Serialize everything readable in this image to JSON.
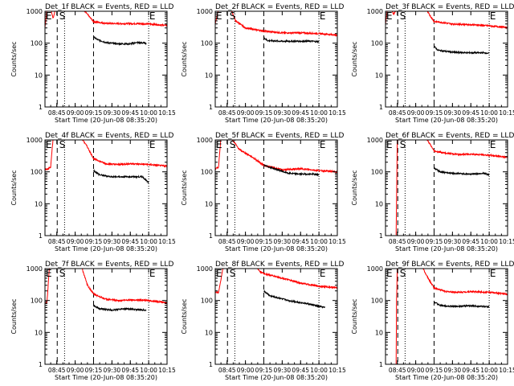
{
  "chart_data": {
    "type": "line",
    "layout": {
      "rows": 3,
      "cols": 3
    },
    "colors": {
      "events": "#000000",
      "lld": "#ff0000",
      "axes": "#000000",
      "background": "#ffffff"
    },
    "scale": {
      "y": "log"
    },
    "ylim": [
      1,
      1000
    ],
    "ytick_labels": [
      "1",
      "10",
      "100",
      "1000"
    ],
    "xlim": [
      "08:35:20",
      "10:15:00"
    ],
    "xtick_labels": [
      "08:45",
      "09:00",
      "09:15",
      "09:30",
      "09:45",
      "10:00",
      "10:15"
    ],
    "xlabel": "Start Time (20-Jun-08 08:35:20)",
    "ylabel": "Counts/sec",
    "vline_labels": {
      "E": "E",
      "S": "S"
    },
    "panels": [
      {
        "title": "Det_1f BLACK = Events, RED = LLD",
        "dashed_lines": [
          "08:45:20",
          "09:15:00"
        ],
        "dotted_lines": [
          "08:51:20",
          "10:00:00"
        ],
        "labels": {
          "E1": "08:36:00",
          "S": "08:47:00",
          "E2": "10:00:30"
        },
        "lld": [
          [
            "08:35:20",
            300
          ],
          [
            "08:37:00",
            1200
          ],
          [
            "08:40:00",
            1200
          ],
          [
            "08:42:00",
            600
          ],
          [
            "08:44:00",
            1200
          ],
          [
            "08:44:30",
            1200
          ],
          [
            "09:06:00",
            1200
          ],
          [
            "09:10:00",
            800
          ],
          [
            "09:15:00",
            470
          ],
          [
            "09:25:00",
            420
          ],
          [
            "09:35:00",
            410
          ],
          [
            "09:50:00",
            410
          ],
          [
            "10:00:00",
            400
          ],
          [
            "10:15:00",
            360
          ]
        ],
        "events": [
          [
            "09:15:00",
            160
          ],
          [
            "09:18:00",
            130
          ],
          [
            "09:25:00",
            105
          ],
          [
            "09:35:00",
            95
          ],
          [
            "09:45:00",
            95
          ],
          [
            "09:50:00",
            105
          ],
          [
            "09:58:00",
            100
          ]
        ]
      },
      {
        "title": "Det_2f BLACK = Events, RED = LLD",
        "dashed_lines": [
          "08:45:20",
          "09:15:00"
        ],
        "dotted_lines": [
          "08:51:20",
          "10:00:00"
        ],
        "labels": {
          "E1": "08:36:00",
          "S": "08:47:00",
          "E2": "10:00:30"
        },
        "lld": [
          [
            "08:35:20",
            400
          ],
          [
            "08:38:00",
            1200
          ],
          [
            "08:42:00",
            1200
          ],
          [
            "08:44:30",
            1200
          ],
          [
            "08:48:00",
            1200
          ],
          [
            "08:52:00",
            500
          ],
          [
            "09:00:00",
            300
          ],
          [
            "09:15:00",
            240
          ],
          [
            "09:30:00",
            210
          ],
          [
            "09:45:00",
            210
          ],
          [
            "10:00:00",
            200
          ],
          [
            "10:15:00",
            180
          ]
        ],
        "events": [
          [
            "09:15:00",
            150
          ],
          [
            "09:18:00",
            120
          ],
          [
            "09:30:00",
            115
          ],
          [
            "09:45:00",
            115
          ],
          [
            "09:55:00",
            115
          ],
          [
            "10:00:00",
            110
          ]
        ]
      },
      {
        "title": "Det_3f BLACK = Events, RED = LLD",
        "dashed_lines": [
          "08:45:20",
          "09:15:00"
        ],
        "dotted_lines": [
          "08:51:20",
          "10:00:00"
        ],
        "labels": {
          "E1": "08:36:00",
          "S": "08:47:00",
          "E2": "10:00:30"
        },
        "lld": [
          [
            "08:35:20",
            400
          ],
          [
            "08:37:00",
            1200
          ],
          [
            "08:40:00",
            1200
          ],
          [
            "08:42:00",
            800
          ],
          [
            "08:44:30",
            1200
          ],
          [
            "09:08:00",
            1200
          ],
          [
            "09:12:00",
            700
          ],
          [
            "09:15:00",
            480
          ],
          [
            "09:30:00",
            400
          ],
          [
            "09:45:00",
            380
          ],
          [
            "10:00:00",
            350
          ],
          [
            "10:15:00",
            310
          ]
        ],
        "events": [
          [
            "09:15:00",
            80
          ],
          [
            "09:18:00",
            60
          ],
          [
            "09:30:00",
            52
          ],
          [
            "09:45:00",
            50
          ],
          [
            "09:55:00",
            50
          ],
          [
            "10:00:00",
            48
          ]
        ]
      },
      {
        "title": "Det_4f BLACK = Events, RED = LLD",
        "dashed_lines": [
          "08:45:20",
          "09:15:00"
        ],
        "dotted_lines": [
          "08:51:20",
          "10:00:00"
        ],
        "labels": {
          "E1": "08:36:00",
          "S": "08:47:00",
          "E2": "10:00:30"
        },
        "lld": [
          [
            "08:35:20",
            120
          ],
          [
            "08:37:00",
            120
          ],
          [
            "08:40:00",
            140
          ],
          [
            "08:42:00",
            1200
          ],
          [
            "08:44:30",
            1200
          ],
          [
            "09:05:00",
            1200
          ],
          [
            "09:10:00",
            600
          ],
          [
            "09:15:00",
            260
          ],
          [
            "09:25:00",
            180
          ],
          [
            "09:35:00",
            170
          ],
          [
            "09:45:00",
            180
          ],
          [
            "10:00:00",
            170
          ],
          [
            "10:15:00",
            150
          ]
        ],
        "events": [
          [
            "09:15:00",
            110
          ],
          [
            "09:20:00",
            80
          ],
          [
            "09:30:00",
            70
          ],
          [
            "09:45:00",
            70
          ],
          [
            "09:55:00",
            70
          ],
          [
            "10:00:00",
            45
          ]
        ]
      },
      {
        "title": "Det_5f BLACK = Events, RED = LLD",
        "dashed_lines": [
          "08:45:20",
          "09:15:00"
        ],
        "dotted_lines": [
          "08:51:20",
          "10:00:00"
        ],
        "labels": {
          "E1": "08:36:00",
          "S": "08:47:00",
          "E2": "10:00:30"
        },
        "lld": [
          [
            "08:35:20",
            120
          ],
          [
            "08:38:00",
            140
          ],
          [
            "08:40:00",
            1200
          ],
          [
            "08:44:30",
            1200
          ],
          [
            "08:48:00",
            1200
          ],
          [
            "08:55:00",
            500
          ],
          [
            "09:05:00",
            300
          ],
          [
            "09:15:00",
            160
          ],
          [
            "09:30:00",
            115
          ],
          [
            "09:45:00",
            125
          ],
          [
            "10:00:00",
            110
          ],
          [
            "10:15:00",
            100
          ]
        ],
        "events": [
          [
            "09:15:00",
            160
          ],
          [
            "09:25:00",
            120
          ],
          [
            "09:35:00",
            90
          ],
          [
            "09:45:00",
            85
          ],
          [
            "09:55:00",
            85
          ],
          [
            "10:00:00",
            80
          ]
        ]
      },
      {
        "title": "Det_6f BLACK = Events, RED = LLD",
        "dashed_lines": [
          "08:45:20",
          "09:15:00"
        ],
        "dotted_lines": [
          "08:51:20",
          "10:00:00"
        ],
        "labels": {
          "E1": "08:36:00",
          "S": "08:47:00",
          "E2": "10:00:30"
        },
        "lld": [
          [
            "08:44:00",
            1
          ],
          [
            "08:45:00",
            1200
          ],
          [
            "08:46:00",
            1200
          ],
          [
            "09:08:00",
            1200
          ],
          [
            "09:12:00",
            700
          ],
          [
            "09:15:00",
            450
          ],
          [
            "09:25:00",
            380
          ],
          [
            "09:35:00",
            350
          ],
          [
            "09:45:00",
            360
          ],
          [
            "09:55:00",
            340
          ],
          [
            "10:00:00",
            330
          ],
          [
            "10:15:00",
            290
          ]
        ],
        "events": [
          [
            "09:15:00",
            130
          ],
          [
            "09:20:00",
            100
          ],
          [
            "09:30:00",
            90
          ],
          [
            "09:45:00",
            85
          ],
          [
            "09:55:00",
            90
          ],
          [
            "10:00:00",
            80
          ]
        ]
      },
      {
        "title": "Det_7f BLACK = Events, RED = LLD",
        "dashed_lines": [
          "08:45:20",
          "09:15:00"
        ],
        "dotted_lines": [
          "08:51:20",
          "10:00:00"
        ],
        "labels": {
          "E1": "08:36:00",
          "S": "08:47:00",
          "E2": "10:00:30"
        },
        "lld": [
          [
            "08:35:20",
            90
          ],
          [
            "08:37:00",
            90
          ],
          [
            "08:39:00",
            1200
          ],
          [
            "08:44:30",
            1200
          ],
          [
            "09:05:00",
            1200
          ],
          [
            "09:10:00",
            300
          ],
          [
            "09:15:00",
            160
          ],
          [
            "09:25:00",
            110
          ],
          [
            "09:35:00",
            100
          ],
          [
            "09:45:00",
            105
          ],
          [
            "10:00:00",
            100
          ],
          [
            "10:15:00",
            85
          ]
        ],
        "events": [
          [
            "09:15:00",
            70
          ],
          [
            "09:20:00",
            55
          ],
          [
            "09:30:00",
            50
          ],
          [
            "09:40:00",
            55
          ],
          [
            "09:50:00",
            52
          ],
          [
            "09:58:00",
            50
          ]
        ]
      },
      {
        "title": "Det_8f BLACK = Events, RED = LLD",
        "dashed_lines": [
          "08:45:20",
          "09:15:00"
        ],
        "dotted_lines": [
          "08:51:20",
          "10:00:00"
        ],
        "labels": {
          "E1": "08:36:00",
          "S": "08:47:00",
          "E2": "10:00:30"
        },
        "lld": [
          [
            "08:35:20",
            180
          ],
          [
            "08:38:00",
            180
          ],
          [
            "08:42:00",
            1200
          ],
          [
            "08:44:30",
            1200
          ],
          [
            "09:08:00",
            1200
          ],
          [
            "09:12:00",
            800
          ],
          [
            "09:15:00",
            700
          ],
          [
            "09:30:00",
            500
          ],
          [
            "09:45:00",
            350
          ],
          [
            "10:00:00",
            280
          ],
          [
            "10:15:00",
            250
          ]
        ],
        "events": [
          [
            "09:15:00",
            200
          ],
          [
            "09:20:00",
            140
          ],
          [
            "09:35:00",
            100
          ],
          [
            "09:50:00",
            80
          ],
          [
            "10:00:00",
            65
          ],
          [
            "10:05:00",
            60
          ]
        ]
      },
      {
        "title": "Det_9f BLACK = Events, RED = LLD",
        "dashed_lines": [
          "08:45:20",
          "09:15:00"
        ],
        "dotted_lines": [
          "08:51:20",
          "10:00:00"
        ],
        "labels": {
          "E1": "08:36:00",
          "S": "08:47:00",
          "E2": "10:00:30"
        },
        "lld": [
          [
            "08:44:00",
            1
          ],
          [
            "08:44:20",
            100
          ],
          [
            "08:45:00",
            1200
          ],
          [
            "08:46:00",
            1200
          ],
          [
            "09:05:00",
            1200
          ],
          [
            "09:10:00",
            500
          ],
          [
            "09:15:00",
            250
          ],
          [
            "09:25:00",
            190
          ],
          [
            "09:35:00",
            180
          ],
          [
            "09:45:00",
            190
          ],
          [
            "10:00:00",
            180
          ],
          [
            "10:15:00",
            160
          ]
        ],
        "events": [
          [
            "09:15:00",
            90
          ],
          [
            "09:20:00",
            70
          ],
          [
            "09:30:00",
            65
          ],
          [
            "09:45:00",
            68
          ],
          [
            "09:55:00",
            65
          ],
          [
            "10:00:00",
            62
          ]
        ]
      }
    ]
  }
}
